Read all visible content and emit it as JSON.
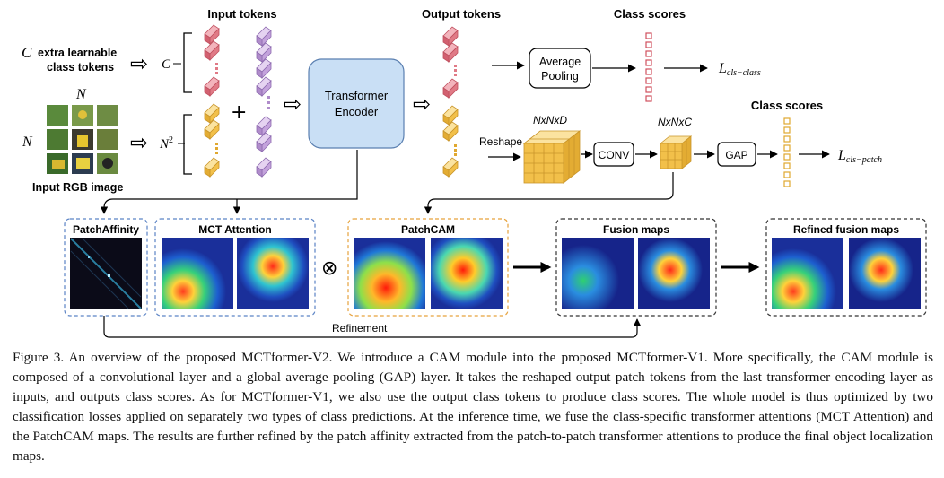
{
  "labels": {
    "input_tokens": "Input tokens",
    "output_tokens": "Output tokens",
    "class_scores_top": "Class scores",
    "class_scores_patch": "Class scores",
    "c_symbol": "C",
    "extra_line1": "extra learnable",
    "extra_line2": "class tokens",
    "c_label": "C",
    "n_top": "N",
    "n_left": "N",
    "n_squared": "N",
    "n_squared_exp": "2",
    "input_rgb": "Input RGB image",
    "transformer_line1": "Transformer",
    "transformer_line2": "Encoder",
    "average_line1": "Average",
    "average_line2": "Pooling",
    "loss_class_main": "L",
    "loss_class_sub": "cls−class",
    "reshape": "Reshape",
    "nxnxd": "NxNxD",
    "conv": "CONV",
    "nxnxc": "NxNxC",
    "gap": "GAP",
    "loss_patch_main": "L",
    "loss_patch_sub": "cls−patch",
    "patch_affinity": "PatchAffinity",
    "mct_attention": "MCT Attention",
    "patchcam": "PatchCAM",
    "fusion_maps": "Fusion maps",
    "refined_fusion_maps": "Refined fusion maps",
    "refinement": "Refinement",
    "otimes": "⊗",
    "plus": "+",
    "implies": "⇨"
  },
  "caption": "Figure 3. An overview of the proposed MCTformer-V2. We introduce a CAM module into the proposed MCTformer-V1. More specifically, the CAM module is composed of a convolutional layer and a global average pooling (GAP) layer. It takes the reshaped output patch tokens from the last transformer encoding layer as inputs, and outputs class scores. As for MCTformer-V1, we also use the output class tokens to produce class scores. The whole model is thus optimized by two classification losses applied on separately two types of class predictions. At the inference time, we fuse the class-specific transformer attentions (MCT Attention) and the PatchCAM maps. The results are further refined by the patch affinity extracted from the patch-to-patch transformer attentions to produce the final object localization maps.",
  "colors": {
    "class_token": "#e07a86",
    "patch_token": "#f2c04a",
    "purple_token": "#c4a3dc",
    "encoder_fill": "#c9dff5",
    "encoder_stroke": "#5a7fb0",
    "blue_dash": "#5b83c5",
    "orange_dash": "#e6a23c",
    "black_dash": "#333333"
  }
}
